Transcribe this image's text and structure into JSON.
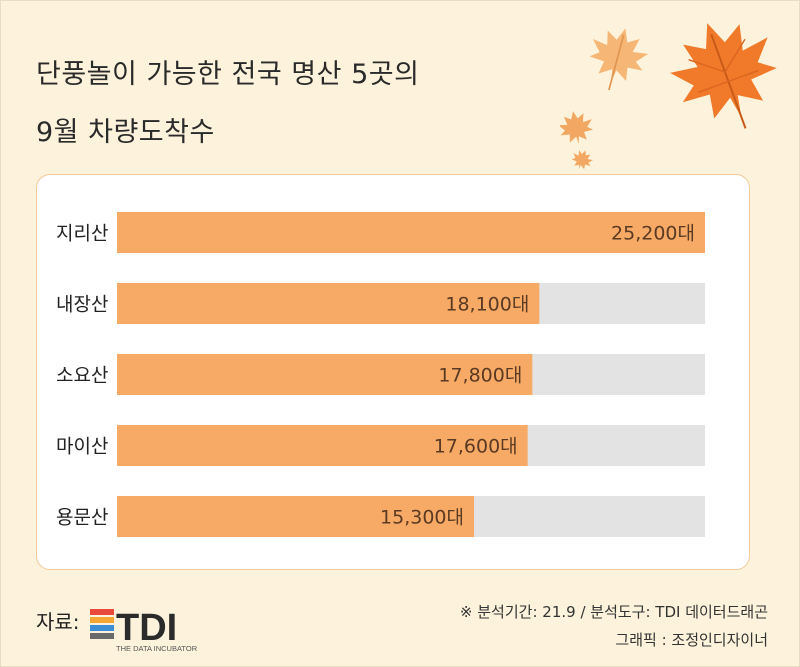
{
  "title": {
    "line1": "단풍놀이 가능한 전국 명산 5곳의",
    "line2": "9월 차량도착수"
  },
  "chart_data": {
    "type": "bar",
    "orientation": "horizontal",
    "categories": [
      "지리산",
      "내장산",
      "소요산",
      "마이산",
      "용문산"
    ],
    "values": [
      25200,
      18100,
      17800,
      17600,
      15300
    ],
    "value_labels": [
      "25,200대",
      "18,100대",
      "17,800대",
      "17,600대",
      "15,300대"
    ],
    "xlim": [
      0,
      25200
    ],
    "grid": false,
    "legend": "none",
    "colors": {
      "bar": "#f7aa66",
      "track": "#e3e3e3"
    }
  },
  "footer": {
    "source_label": "자료:",
    "logo_text": "TDI",
    "logo_subtitle": "THE DATA INCUBATOR",
    "note_line1": "※ 분석기간: 21.9 / 분석도구: TDI 데이터드래곤",
    "note_line2": "그래픽 : 조정인디자이너"
  },
  "colors": {
    "background": "#fdf3dc",
    "leaf_dark": "#f07a2a",
    "leaf_light": "#f6b676"
  }
}
